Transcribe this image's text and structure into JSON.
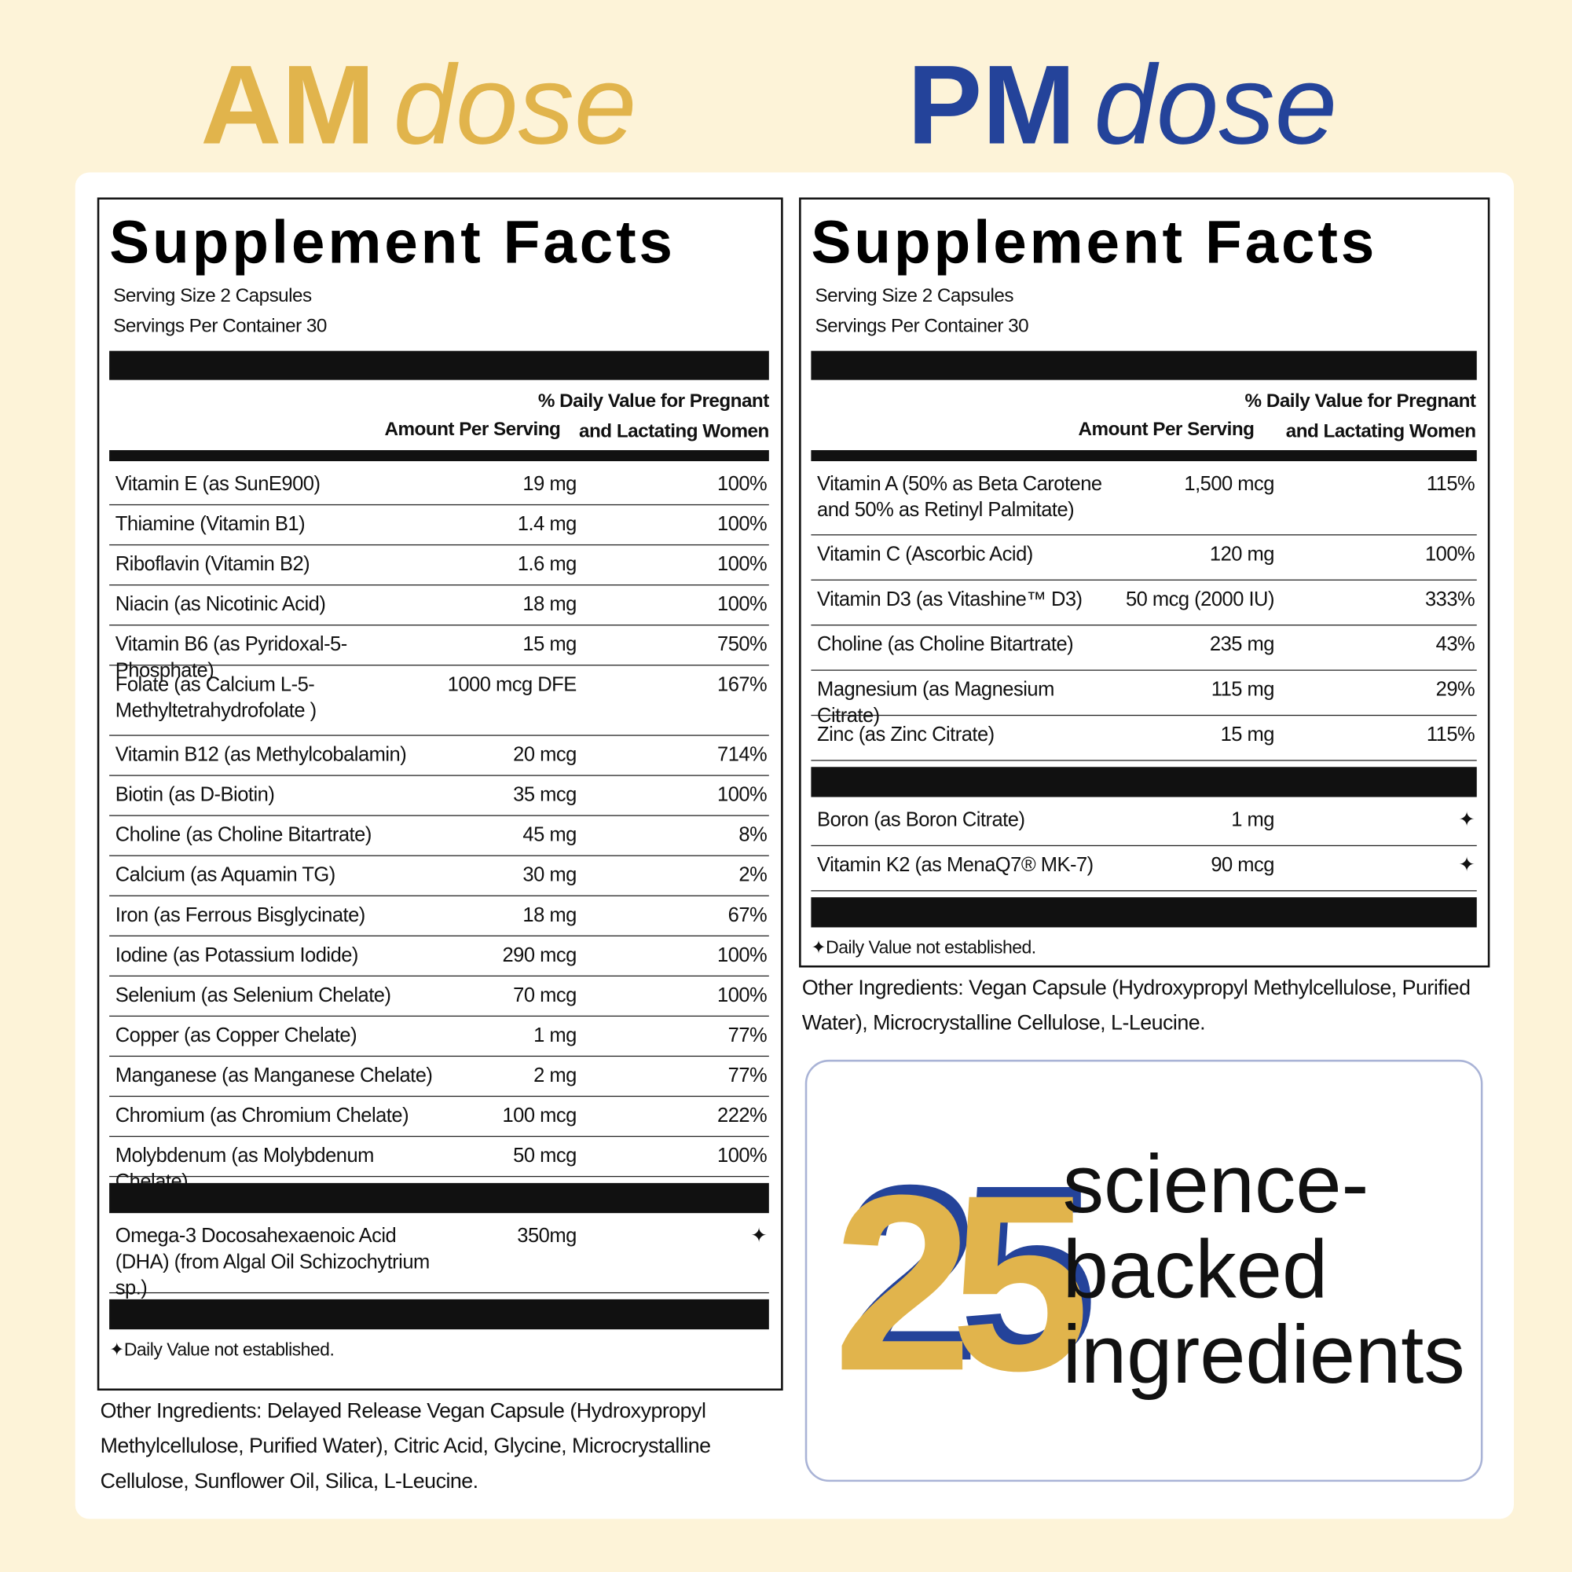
{
  "am_header": {
    "bold": "AM",
    "italic": "dose"
  },
  "pm_header": {
    "bold": "PM",
    "italic": "dose"
  },
  "am_label": {
    "title": "Supplement Facts",
    "serving_size": "Serving Size 2 Capsules",
    "servings_per_container": "Servings Per Container  30",
    "col_amount": "Amount Per Serving",
    "col_dv_1": "% Daily Value for Pregnant",
    "col_dv_2": "and Lactating Women",
    "rows": [
      [
        "Vitamin E (as SunE900)",
        "19 mg",
        "100%"
      ],
      [
        "Thiamine (Vitamin B1)",
        "1.4 mg",
        "100%"
      ],
      [
        "Riboflavin (Vitamin B2)",
        "1.6 mg",
        "100%"
      ],
      [
        "Niacin (as Nicotinic Acid)",
        "18 mg",
        "100%"
      ],
      [
        "Vitamin B6 (as Pyridoxal-5-Phosphate)",
        "15 mg",
        "750%"
      ],
      [
        "Folate (as Calcium L-5-Methyltetrahydrofolate )",
        "1000 mcg DFE",
        "167%"
      ],
      [
        "Vitamin B12 (as Methylcobalamin)",
        "20 mcg",
        "714%"
      ],
      [
        "Biotin (as D-Biotin)",
        "35 mcg",
        "100%"
      ],
      [
        "Choline (as Choline Bitartrate)",
        "45 mg",
        "8%"
      ],
      [
        "Calcium (as Aquamin TG)",
        "30 mg",
        "2%"
      ],
      [
        "Iron (as Ferrous Bisglycinate)",
        "18 mg",
        "67%"
      ],
      [
        "Iodine (as Potassium Iodide)",
        "290 mcg",
        "100%"
      ],
      [
        "Selenium (as Selenium Chelate)",
        "70 mcg",
        "100%"
      ],
      [
        "Copper (as Copper Chelate)",
        "1 mg",
        "77%"
      ],
      [
        "Manganese (as Manganese Chelate)",
        "2 mg",
        "77%"
      ],
      [
        "Chromium (as Chromium Chelate)",
        "100 mcg",
        "222%"
      ],
      [
        "Molybdenum (as Molybdenum Chelate)",
        "50 mcg",
        "100%"
      ]
    ],
    "extra_rows": [
      [
        "Omega-3 Docosahexaenoic Acid (DHA) (from Algal Oil Schizochytrium sp.)",
        "350mg",
        "✦"
      ]
    ],
    "footnote": "✦Daily Value not established.",
    "other_ingredients": "Other Ingredients: Delayed Release Vegan Capsule (Hydroxypropyl Methylcellulose, Purified Water), Citric Acid, Glycine, Microcrystalline Cellulose, Sunflower Oil, Silica, L-Leucine."
  },
  "pm_label": {
    "title": "Supplement Facts",
    "serving_size": "Serving Size 2 Capsules",
    "servings_per_container": "Servings Per Container  30",
    "col_amount": "Amount Per Serving",
    "col_dv_1": "% Daily Value for Pregnant",
    "col_dv_2": "and Lactating Women",
    "rows": [
      [
        "Vitamin A (50% as Beta Carotene and 50% as Retinyl Palmitate)",
        "1,500 mcg",
        "115%"
      ],
      [
        "Vitamin C (Ascorbic Acid)",
        "120 mg",
        "100%"
      ],
      [
        "Vitamin D3 (as Vitashine™ D3)",
        "50 mcg (2000 IU)",
        "333%"
      ],
      [
        "Choline (as Choline Bitartrate)",
        "235 mg",
        "43%"
      ],
      [
        "Magnesium (as Magnesium Citrate)",
        "115 mg",
        "29%"
      ],
      [
        "Zinc (as Zinc Citrate)",
        "15 mg",
        "115%"
      ]
    ],
    "extra_rows": [
      [
        "Boron (as Boron Citrate)",
        "1 mg",
        "✦"
      ],
      [
        "Vitamin K2 (as MenaQ7® MK-7)",
        "90 mcg",
        "✦"
      ]
    ],
    "footnote": "✦Daily Value not established.",
    "other_ingredients": "Other Ingredients: Vegan Capsule (Hydroxypropyl Methylcellulose, Purified Water), Microcrystalline Cellulose, L-Leucine."
  },
  "badge": {
    "number": "25",
    "line_1": "science-",
    "line_2": "backed",
    "line_3": "ingredients"
  }
}
